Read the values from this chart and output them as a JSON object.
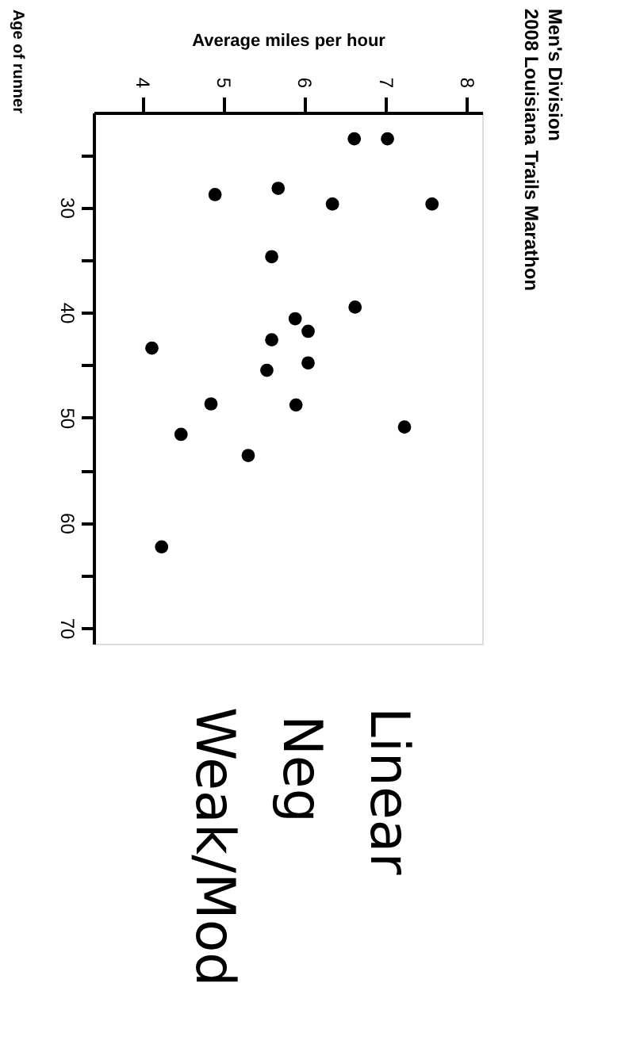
{
  "chart_data": {
    "type": "scatter",
    "title": "Men's Division",
    "subtitle": "2008 Louisiana Trails Marathon",
    "xlabel": "Average miles per hour",
    "ylabel": "Age of runner",
    "x": [
      6.62,
      7.03,
      4.9,
      5.68,
      6.35,
      7.58,
      5.6,
      6.63,
      5.89,
      6.05,
      4.12,
      5.6,
      6.05,
      5.54,
      4.85,
      5.9,
      4.48,
      7.24,
      5.31,
      4.24
    ],
    "series": [
      {
        "color": "#000000",
        "values": [
          23.5,
          23.5,
          28.8,
          28.2,
          29.7,
          29.7,
          34.7,
          39.5,
          40.6,
          41.8,
          43.4,
          42.6,
          44.8,
          45.5,
          48.7,
          48.8,
          51.6,
          50.9,
          53.6,
          62.3
        ]
      }
    ],
    "xlim": [
      3.4,
      8.2
    ],
    "xticks": [
      4,
      5,
      6,
      7,
      8
    ],
    "ylim": [
      71.5,
      21
    ],
    "yticks": [
      {
        "value": 25,
        "label": null
      },
      30,
      {
        "value": 35,
        "label": null
      },
      40,
      {
        "value": 45,
        "label": null
      },
      50,
      {
        "value": 55,
        "label": null
      },
      60,
      {
        "value": 65,
        "label": null
      },
      70
    ],
    "grid": false,
    "marker": "circle",
    "annotations": [
      "Linear",
      "Neg",
      "Weak/Mod"
    ]
  }
}
